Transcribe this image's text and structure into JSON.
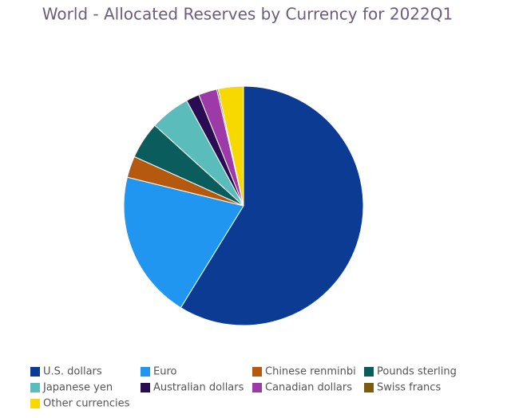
{
  "chart_data": {
    "type": "pie",
    "title": "World - Allocated Reserves by Currency for 2022Q1",
    "categories": [
      "U.S. dollars",
      "Euro",
      "Chinese renminbi",
      "Pounds sterling",
      "Japanese yen",
      "Australian dollars",
      "Canadian dollars",
      "Swiss francs",
      "Other currencies"
    ],
    "values": [
      58.9,
      20.1,
      2.9,
      5.0,
      5.4,
      1.8,
      2.5,
      0.2,
      3.4
    ],
    "colors": [
      "#0b3b93",
      "#2196f0",
      "#b5590f",
      "#0b5c5c",
      "#5bbcbc",
      "#2a0c52",
      "#9c3aa8",
      "#7d5a0c",
      "#f7d900"
    ],
    "legend": "bottom"
  }
}
